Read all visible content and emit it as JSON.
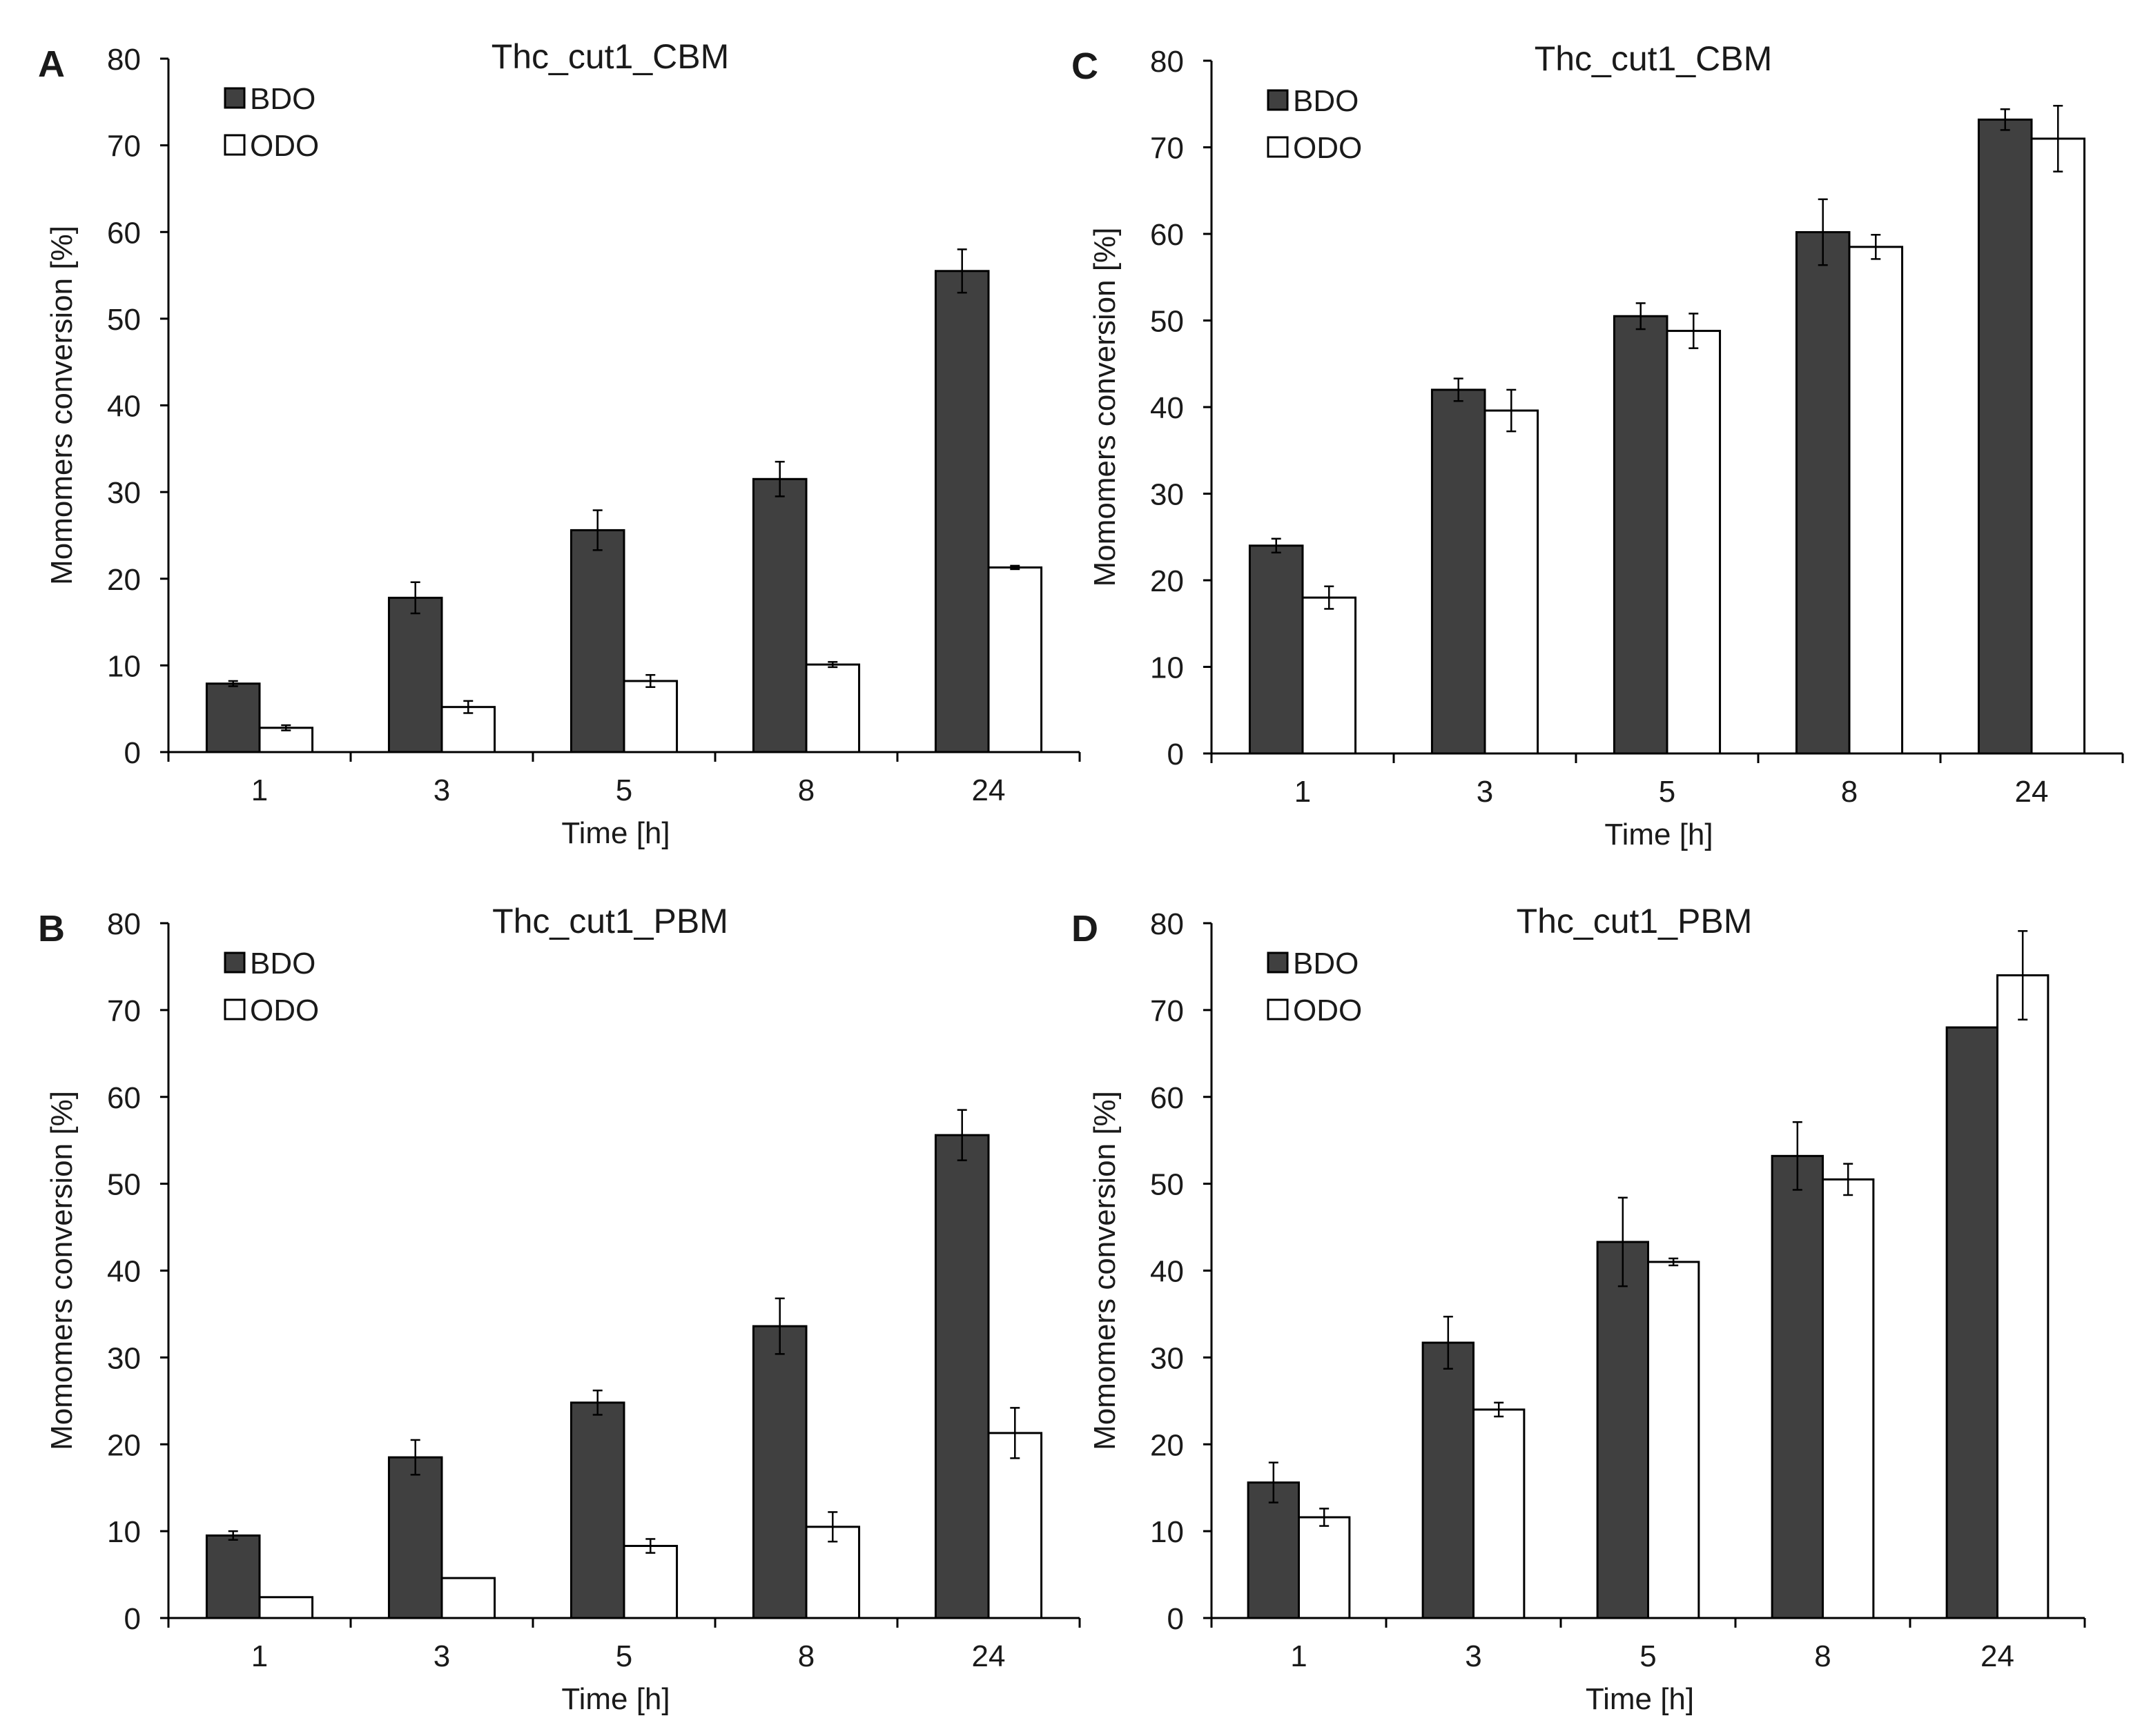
{
  "colors": {
    "bdo": "#404040",
    "odo": "#ffffff",
    "axis": "#000000",
    "text": "#1a1a1a"
  },
  "chart_data": [
    {
      "type": "bar",
      "panel_label": "A",
      "title": "Thc_cut1_CBM",
      "xlabel": "Time [h]",
      "ylabel": "Momomers conversion [%]",
      "ylim": [
        0,
        80
      ],
      "yticks": [
        "0",
        "10",
        "20",
        "30",
        "40",
        "50",
        "60",
        "70",
        "80"
      ],
      "categories": [
        "1",
        "3",
        "5",
        "8",
        "24"
      ],
      "legend_position": "top-left",
      "series": [
        {
          "name": "BDO",
          "values": [
            7.9,
            17.8,
            25.6,
            31.5,
            55.5
          ],
          "errors": [
            0.3,
            1.8,
            2.3,
            2.0,
            2.5
          ]
        },
        {
          "name": "ODO",
          "values": [
            2.8,
            5.2,
            8.2,
            10.1,
            21.3
          ],
          "errors": [
            0.3,
            0.7,
            0.7,
            0.3,
            0.2
          ]
        }
      ]
    },
    {
      "type": "bar",
      "panel_label": "C",
      "title": "Thc_cut1_CBM",
      "xlabel": "Time [h]",
      "ylabel": "Momomers conversion [%]",
      "ylim": [
        0,
        80
      ],
      "yticks": [
        "0",
        "10",
        "20",
        "30",
        "40",
        "50",
        "60",
        "70",
        "80"
      ],
      "categories": [
        "1",
        "3",
        "5",
        "8",
        "24"
      ],
      "legend_position": "top-left",
      "series": [
        {
          "name": "BDO",
          "values": [
            24.0,
            42.0,
            50.5,
            60.2,
            73.2
          ],
          "errors": [
            0.8,
            1.3,
            1.5,
            3.8,
            1.2
          ]
        },
        {
          "name": "ODO",
          "values": [
            18.0,
            39.6,
            48.8,
            58.5,
            71.0
          ],
          "errors": [
            1.3,
            2.4,
            2.0,
            1.4,
            3.8
          ]
        }
      ]
    },
    {
      "type": "bar",
      "panel_label": "B",
      "title": "Thc_cut1_PBM",
      "xlabel": "Time [h]",
      "ylabel": "Momomers conversion [%]",
      "ylim": [
        0,
        80
      ],
      "yticks": [
        "0",
        "10",
        "20",
        "30",
        "40",
        "50",
        "60",
        "70",
        "80"
      ],
      "categories": [
        "1",
        "3",
        "5",
        "8",
        "24"
      ],
      "legend_position": "top-left",
      "series": [
        {
          "name": "BDO",
          "values": [
            9.5,
            18.5,
            24.8,
            33.6,
            55.6
          ],
          "errors": [
            0.5,
            2.0,
            1.4,
            3.2,
            2.9
          ]
        },
        {
          "name": "ODO",
          "values": [
            2.4,
            4.6,
            8.3,
            10.5,
            21.3
          ],
          "errors": [
            0,
            0,
            0.8,
            1.7,
            2.9
          ]
        }
      ]
    },
    {
      "type": "bar",
      "panel_label": "D",
      "title": "Thc_cut1_PBM",
      "xlabel": "Time [h]",
      "ylabel": "Momomers conversion [%]",
      "ylim": [
        0,
        80
      ],
      "yticks": [
        "0",
        "10",
        "20",
        "30",
        "40",
        "50",
        "60",
        "70",
        "80"
      ],
      "categories": [
        "1",
        "3",
        "5",
        "8",
        "24"
      ],
      "legend_position": "top-left",
      "series": [
        {
          "name": "BDO",
          "values": [
            15.6,
            31.7,
            43.3,
            53.2,
            68.0
          ],
          "errors": [
            2.3,
            3.0,
            5.1,
            3.9,
            0
          ]
        },
        {
          "name": "ODO",
          "values": [
            11.6,
            24.0,
            41.0,
            50.5,
            74.0
          ],
          "errors": [
            1.0,
            0.8,
            0.4,
            1.8,
            5.1
          ]
        }
      ]
    }
  ]
}
